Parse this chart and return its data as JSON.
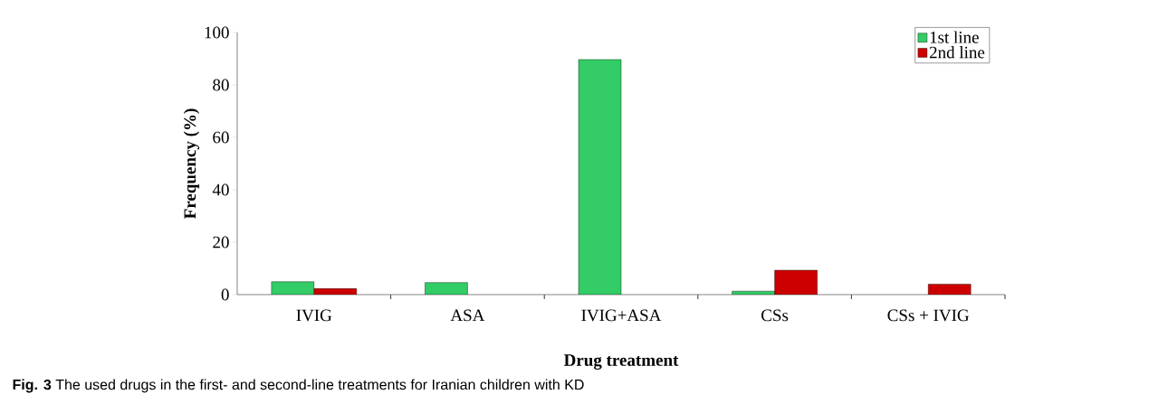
{
  "chart_data": {
    "type": "bar",
    "xlabel": "Drug treatment",
    "ylabel": "Frequency (%)",
    "categories": [
      "IVIG",
      "ASA",
      "IVIG+ASA",
      "CSs",
      "CSs + IVIG"
    ],
    "series": [
      {
        "name": "1st line",
        "color": "#33cc66",
        "values": [
          4.9,
          4.6,
          89.7,
          1.3,
          null
        ]
      },
      {
        "name": "2nd line",
        "color": "#cc0000",
        "values": [
          2.3,
          null,
          null,
          9.3,
          4.0
        ]
      }
    ],
    "ylim": [
      0,
      100
    ],
    "yticks": [
      0,
      20,
      40,
      60,
      80,
      100
    ],
    "grid": false,
    "legend": "top right",
    "annotations": [
      "**Fig. 3** The used drugs in the first- and second-line treatments for Iranian children with KD"
    ]
  }
}
